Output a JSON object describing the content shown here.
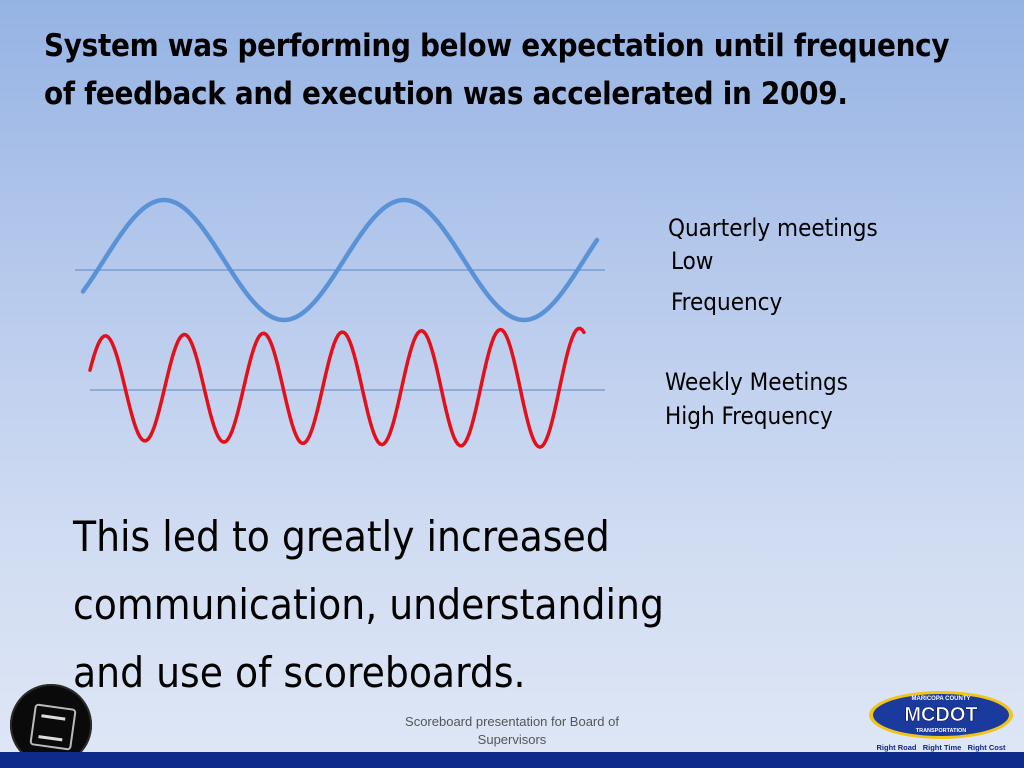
{
  "slide": {
    "title": "System was performing below expectation until frequency of feedback and execution was accelerated in 2009.",
    "low_freq_labels": [
      "Quarterly meetings",
      "Low",
      "Frequency"
    ],
    "high_freq_labels": [
      "Weekly Meetings",
      "High Frequency"
    ],
    "body_lines": [
      "This led to greatly increased",
      "communication, understanding",
      "and use of scoreboards."
    ],
    "footer_lines": [
      "Scoreboard presentation for Board of",
      "Supervisors"
    ]
  },
  "logo": {
    "county": "MARICOPA COUNTY",
    "name": "MCDOT",
    "dept": "TRANSPORTATION",
    "tagline": "Right Road   Right Time   Right Cost"
  },
  "colors": {
    "low_wave": "#5a92d8",
    "high_wave": "#e3101a",
    "baseline": "#5a86c4",
    "bar": "#0e2a8a"
  },
  "icons": {
    "seal": "county-seal-icon"
  }
}
